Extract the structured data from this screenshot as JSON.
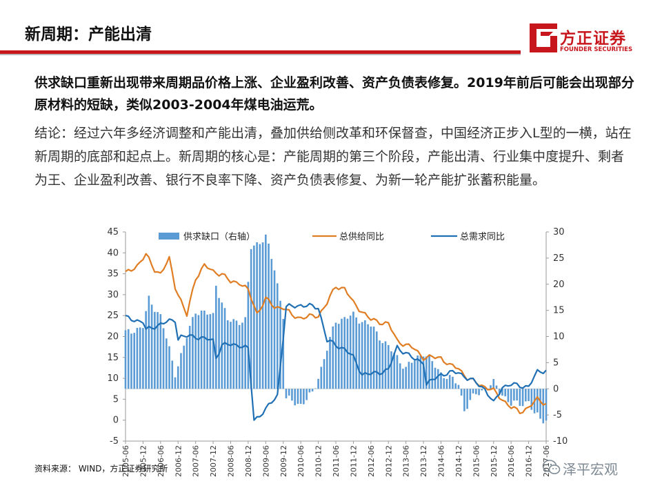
{
  "header": {
    "title": "新周期：产能出清",
    "logo_name": "方正证券",
    "logo_en": "FOUNDER SECURITIES"
  },
  "headline": "供求缺口重新出现带来周期品价格上涨、企业盈利改善、资产负债表修复。2019年前后可能会出现部分原材料的短缺，类似2003-2004年煤电油运荒。",
  "conclusion": "结论：经过六年多经济调整和产能出清，叠加供给侧改革和环保督查，中国经济正步入L型的一横，站在新周期的底部和起点上。新周期的核心是：产能周期的第三个阶段，产能出清、行业集中度提升、剩者为王、企业盈利改善、银行不良率下降、资产负债表修复、为新一轮产能扩张蓄积能量。",
  "source": "资料来源： WIND，方正证券研究所",
  "watermark": "泽平宏观",
  "colors": {
    "accent_red": "#c8161d",
    "bars": "#5b9bd5",
    "supply_line": "#e07d22",
    "demand_line": "#1f6fb5"
  },
  "chart_data": {
    "type": "bar",
    "x_start": "2005-06",
    "x_end": "2017-06",
    "x_step_months": 1,
    "x_tick_labels": [
      "2005-06",
      "2005-12",
      "2006-06",
      "2006-12",
      "2007-06",
      "2007-12",
      "2008-06",
      "2008-12",
      "2009-06",
      "2009-12",
      "2010-06",
      "2010-12",
      "2011-06",
      "2011-12",
      "2012-06",
      "2012-12",
      "2013-06",
      "2013-12",
      "2014-06",
      "2014-12",
      "2015-06",
      "2015-12",
      "2016-06",
      "2016-12",
      "2017-06"
    ],
    "ylim_left": [
      -5,
      45
    ],
    "yticks_left": [
      -5,
      0,
      5,
      10,
      15,
      20,
      25,
      30,
      35,
      40,
      45
    ],
    "ylim_right": [
      -10,
      30
    ],
    "yticks_right": [
      -10,
      -5,
      0,
      5,
      10,
      15,
      20,
      25,
      30
    ],
    "legend_position": "top",
    "series": [
      {
        "name": "供求缺口（右轴）",
        "kind": "bar",
        "axis": "right",
        "anchors": [
          [
            "2005-06",
            10.5
          ],
          [
            "2005-12",
            12
          ],
          [
            "2006-02",
            17
          ],
          [
            "2006-06",
            14
          ],
          [
            "2006-11",
            3
          ],
          [
            "2007-06",
            15
          ],
          [
            "2007-12",
            14
          ],
          [
            "2008-01",
            20
          ],
          [
            "2008-05",
            13
          ],
          [
            "2008-11",
            13
          ],
          [
            "2009-01",
            27
          ],
          [
            "2009-06",
            29
          ],
          [
            "2009-09",
            23
          ],
          [
            "2009-12",
            14
          ],
          [
            "2010-01",
            -2
          ],
          [
            "2010-06",
            -3
          ],
          [
            "2010-10",
            -1
          ],
          [
            "2011-01",
            4
          ],
          [
            "2011-06",
            13
          ],
          [
            "2011-12",
            14
          ],
          [
            "2012-06",
            12
          ],
          [
            "2012-12",
            8
          ],
          [
            "2013-06",
            4
          ],
          [
            "2013-12",
            7
          ],
          [
            "2014-06",
            3
          ],
          [
            "2014-12",
            1
          ],
          [
            "2015-02",
            -4
          ],
          [
            "2015-06",
            -1
          ],
          [
            "2015-12",
            1
          ],
          [
            "2016-06",
            -3
          ],
          [
            "2016-12",
            -2.5
          ],
          [
            "2017-02",
            -5
          ],
          [
            "2017-06",
            -6
          ]
        ]
      },
      {
        "name": "总供给同比",
        "kind": "line",
        "axis": "left",
        "anchors": [
          [
            "2005-06",
            35
          ],
          [
            "2005-10",
            37
          ],
          [
            "2006-01",
            39.5
          ],
          [
            "2006-04",
            36
          ],
          [
            "2006-06",
            35
          ],
          [
            "2006-09",
            38.5
          ],
          [
            "2006-11",
            32
          ],
          [
            "2007-03",
            25
          ],
          [
            "2007-06",
            34
          ],
          [
            "2007-09",
            37
          ],
          [
            "2007-12",
            35.5
          ],
          [
            "2008-03",
            35
          ],
          [
            "2008-06",
            33
          ],
          [
            "2008-09",
            33
          ],
          [
            "2008-12",
            31
          ],
          [
            "2009-03",
            25.5
          ],
          [
            "2009-06",
            29
          ],
          [
            "2009-09",
            27
          ],
          [
            "2009-12",
            27
          ],
          [
            "2010-03",
            25
          ],
          [
            "2010-06",
            24.5
          ],
          [
            "2010-12",
            25
          ],
          [
            "2011-03",
            28
          ],
          [
            "2011-06",
            32
          ],
          [
            "2011-09",
            31.5
          ],
          [
            "2011-12",
            28
          ],
          [
            "2012-06",
            24
          ],
          [
            "2012-12",
            23
          ],
          [
            "2013-03",
            19
          ],
          [
            "2013-09",
            17
          ],
          [
            "2013-12",
            15
          ],
          [
            "2014-06",
            15
          ],
          [
            "2014-09",
            13
          ],
          [
            "2014-12",
            12.5
          ],
          [
            "2015-03",
            10
          ],
          [
            "2015-06",
            9
          ],
          [
            "2015-09",
            8
          ],
          [
            "2015-12",
            7
          ],
          [
            "2016-03",
            5
          ],
          [
            "2016-06",
            3
          ],
          [
            "2016-09",
            2
          ],
          [
            "2016-12",
            3
          ],
          [
            "2017-03",
            5
          ],
          [
            "2017-06",
            4
          ]
        ]
      },
      {
        "name": "总需求同比",
        "kind": "line",
        "axis": "left",
        "anchors": [
          [
            "2005-06",
            24.5
          ],
          [
            "2005-12",
            23.5
          ],
          [
            "2006-01",
            21.5
          ],
          [
            "2006-06",
            23
          ],
          [
            "2006-11",
            24
          ],
          [
            "2006-12",
            19.5
          ],
          [
            "2007-01",
            20
          ],
          [
            "2007-06",
            20
          ],
          [
            "2007-12",
            19
          ],
          [
            "2008-01",
            15
          ],
          [
            "2008-03",
            18
          ],
          [
            "2008-06",
            18
          ],
          [
            "2008-09",
            18
          ],
          [
            "2008-12",
            17
          ],
          [
            "2009-02",
            0
          ],
          [
            "2009-06",
            2.5
          ],
          [
            "2009-10",
            6
          ],
          [
            "2010-01",
            27
          ],
          [
            "2010-06",
            27.5
          ],
          [
            "2010-12",
            27
          ],
          [
            "2011-03",
            19
          ],
          [
            "2011-09",
            17
          ],
          [
            "2011-12",
            15
          ],
          [
            "2012-03",
            11
          ],
          [
            "2012-06",
            11
          ],
          [
            "2012-12",
            12
          ],
          [
            "2013-03",
            17.5
          ],
          [
            "2013-09",
            14.5
          ],
          [
            "2013-12",
            14
          ],
          [
            "2014-01",
            8.5
          ],
          [
            "2014-06",
            11
          ],
          [
            "2014-12",
            11.5
          ],
          [
            "2015-03",
            10
          ],
          [
            "2015-06",
            9
          ],
          [
            "2015-09",
            7.5
          ],
          [
            "2015-12",
            4
          ],
          [
            "2016-03",
            8
          ],
          [
            "2016-06",
            8.5
          ],
          [
            "2016-12",
            8
          ],
          [
            "2017-03",
            11.5
          ],
          [
            "2017-06",
            12
          ]
        ]
      }
    ]
  }
}
